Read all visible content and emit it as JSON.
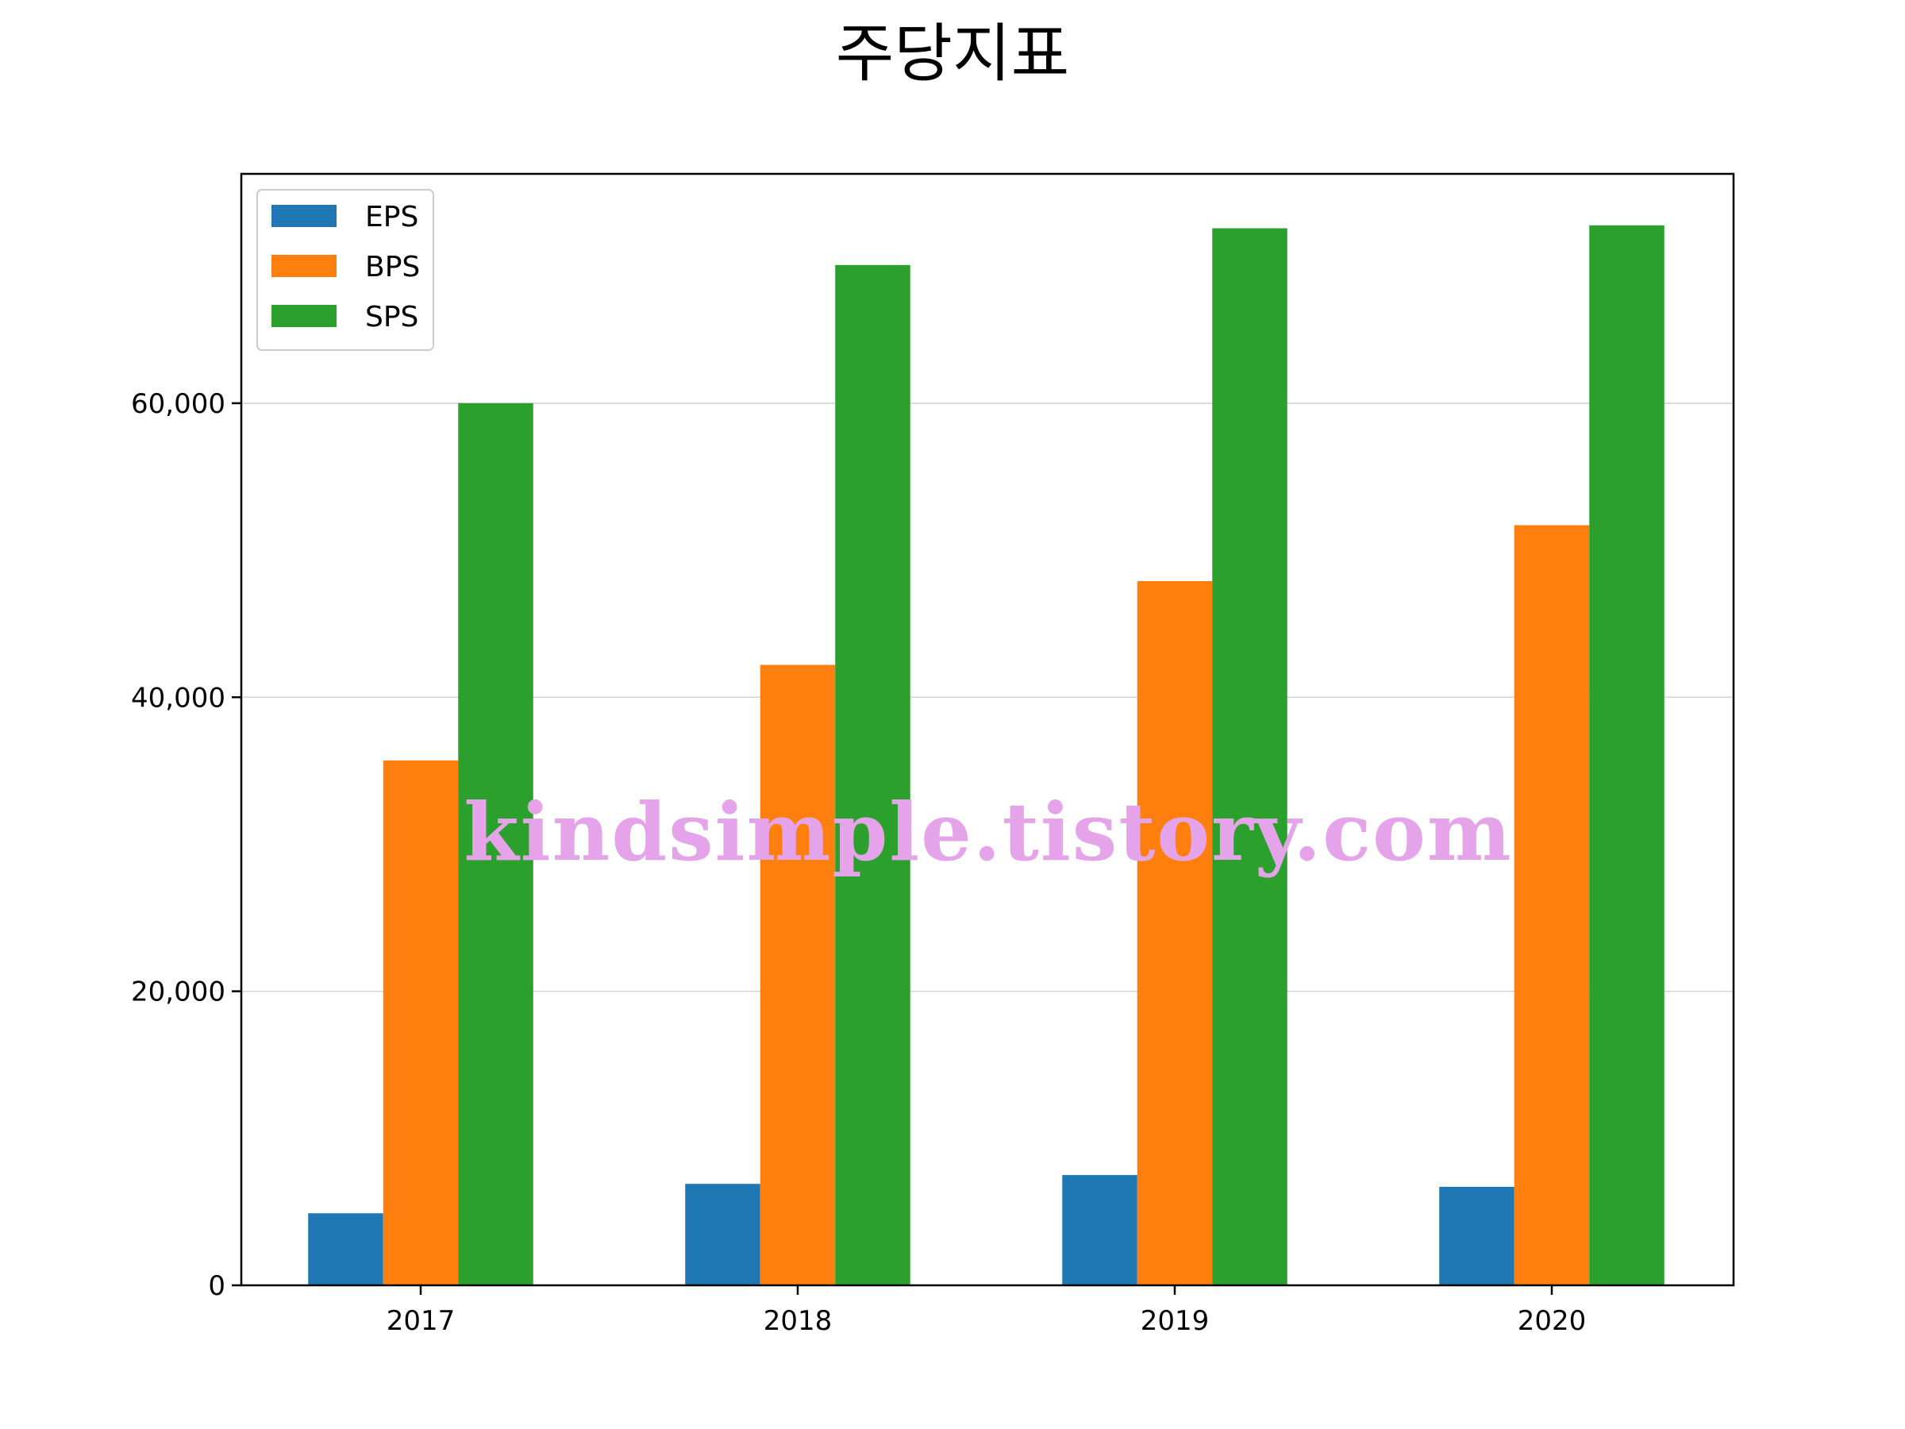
{
  "chart_data": {
    "type": "bar",
    "title": "주당지표",
    "xlabel": "",
    "ylabel": "",
    "categories": [
      "2017",
      "2018",
      "2019",
      "2020"
    ],
    "series": [
      {
        "name": "EPS",
        "color": "#1f77b4",
        "values": [
          4900,
          6900,
          7500,
          6700
        ]
      },
      {
        "name": "BPS",
        "color": "#ff7f0e",
        "values": [
          35700,
          42200,
          47900,
          51700
        ]
      },
      {
        "name": "SPS",
        "color": "#2ca02c",
        "values": [
          60000,
          69400,
          71900,
          72100
        ]
      }
    ],
    "ylim": [
      0,
      75600
    ],
    "yticks": [
      0,
      20000,
      40000,
      60000
    ],
    "ytick_labels": [
      "0",
      "20,000",
      "40,000",
      "60,000"
    ],
    "grid": "horizontal",
    "legend_position": "top-left"
  },
  "watermark": "kindsimple.tistory.com"
}
